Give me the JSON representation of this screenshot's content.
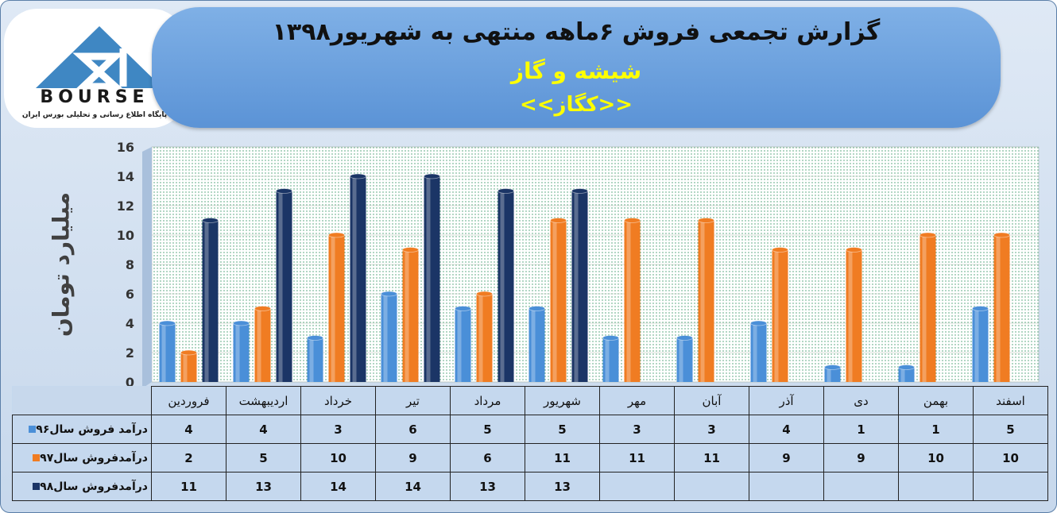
{
  "header": {
    "title": "گزارش تجمعی فروش ۶ماهه منتهی به شهریور۱۳۹۸",
    "subtitle": "شیشه و گاز",
    "symbol": "<<کگاز>>"
  },
  "logo": {
    "brand": "BOURSE",
    "tagline": "پایگاه اطلاع رسانی و تحلیلی بورس ایران"
  },
  "colors": {
    "s96": "#4a8fd8",
    "s97": "#f07c22",
    "s98": "#1b3566"
  },
  "chart_data": {
    "type": "bar",
    "ylabel": "میلیارد تومان",
    "ylim": [
      0,
      16
    ],
    "yticks": [
      "0",
      "2",
      "4",
      "6",
      "8",
      "10",
      "12",
      "14",
      "16"
    ],
    "categories": [
      "فروردین",
      "اردیبهشت",
      "خرداد",
      "تیر",
      "مرداد",
      "شهریور",
      "مهر",
      "آبان",
      "آذر",
      "دی",
      "بهمن",
      "اسفند"
    ],
    "series": [
      {
        "name": "درآمد فروش سال۹۶",
        "color": "#4a8fd8",
        "values": [
          4,
          4,
          3,
          6,
          5,
          5,
          3,
          3,
          4,
          1,
          1,
          5
        ],
        "cells": [
          "4",
          "4",
          "3",
          "6",
          "5",
          "5",
          "3",
          "3",
          "4",
          "1",
          "1",
          "5"
        ]
      },
      {
        "name": "درآمدفروش سال۹۷",
        "color": "#f07c22",
        "values": [
          2,
          5,
          10,
          9,
          6,
          11,
          11,
          11,
          9,
          9,
          10,
          10
        ],
        "cells": [
          "2",
          "5",
          "10",
          "9",
          "6",
          "11",
          "11",
          "11",
          "9",
          "9",
          "10",
          "10"
        ]
      },
      {
        "name": "درآمدفروش سال۹۸",
        "color": "#1b3566",
        "values": [
          11,
          13,
          14,
          14,
          13,
          13,
          null,
          null,
          null,
          null,
          null,
          null
        ],
        "cells": [
          "11",
          "13",
          "14",
          "14",
          "13",
          "13",
          "",
          "",
          "",
          "",
          "",
          ""
        ]
      }
    ],
    "grid": true,
    "legend": "table"
  }
}
